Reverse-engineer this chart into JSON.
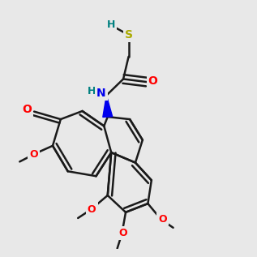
{
  "bg_color": "#e8e8e8",
  "bond_color": "#1a1a1a",
  "bond_width": 1.8,
  "atom_colors": {
    "O": "#ff0000",
    "N": "#0000ee",
    "S": "#aaaa00",
    "H_SH": "#008080",
    "H_NH": "#008080"
  }
}
